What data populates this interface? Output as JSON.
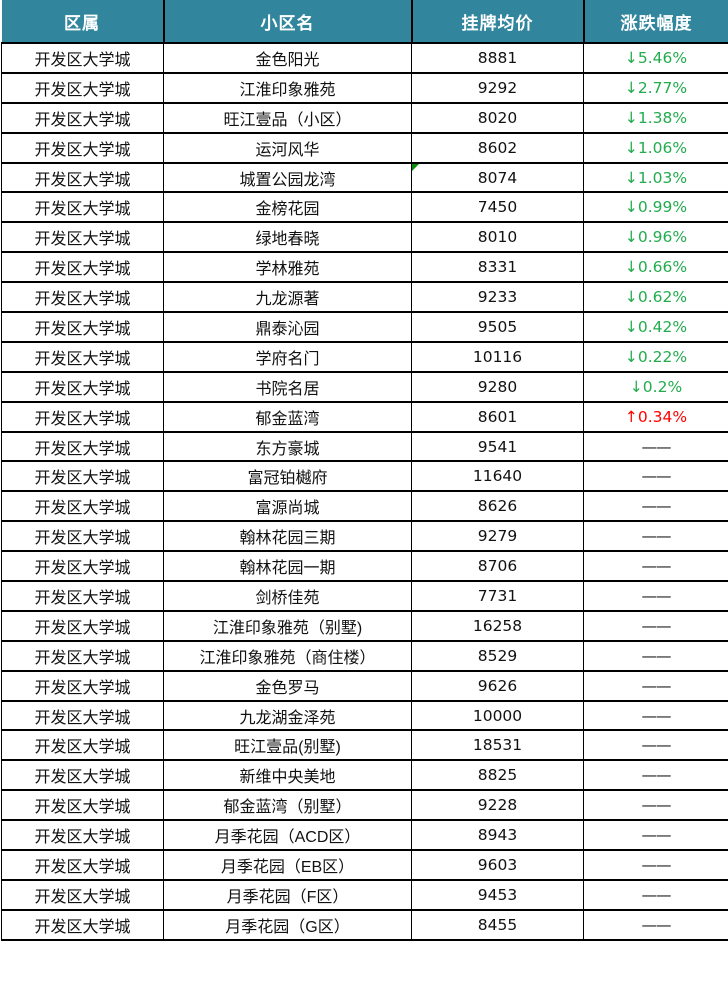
{
  "colors": {
    "header_bg": "#31859C",
    "header_text": "#FFFFFF",
    "grid_border": "#000000",
    "down_green": "#22AC4E",
    "up_red": "#FF0000",
    "comment_marker_green": "#0B8F0B"
  },
  "table": {
    "headers": {
      "district": "区属",
      "name": "小区名",
      "price": "挂牌均价",
      "change": "涨跌幅度"
    },
    "rows": [
      {
        "district": "开发区大学城",
        "name": "金色阳光",
        "price": "8881",
        "change": "↓5.46%",
        "direction": "down",
        "marker": false
      },
      {
        "district": "开发区大学城",
        "name": "江淮印象雅苑",
        "price": "9292",
        "change": "↓2.77%",
        "direction": "down",
        "marker": false
      },
      {
        "district": "开发区大学城",
        "name": "旺江壹品（小区）",
        "price": "8020",
        "change": "↓1.38%",
        "direction": "down",
        "marker": false
      },
      {
        "district": "开发区大学城",
        "name": "运河风华",
        "price": "8602",
        "change": "↓1.06%",
        "direction": "down",
        "marker": false
      },
      {
        "district": "开发区大学城",
        "name": "城置公园龙湾",
        "price": "8074",
        "change": "↓1.03%",
        "direction": "down",
        "marker": true
      },
      {
        "district": "开发区大学城",
        "name": "金榜花园",
        "price": "7450",
        "change": "↓0.99%",
        "direction": "down",
        "marker": false
      },
      {
        "district": "开发区大学城",
        "name": "绿地春晓",
        "price": "8010",
        "change": "↓0.96%",
        "direction": "down",
        "marker": false
      },
      {
        "district": "开发区大学城",
        "name": "学林雅苑",
        "price": "8331",
        "change": "↓0.66%",
        "direction": "down",
        "marker": false
      },
      {
        "district": "开发区大学城",
        "name": "九龙源著",
        "price": "9233",
        "change": "↓0.62%",
        "direction": "down",
        "marker": false
      },
      {
        "district": "开发区大学城",
        "name": "鼎泰沁园",
        "price": "9505",
        "change": "↓0.42%",
        "direction": "down",
        "marker": false
      },
      {
        "district": "开发区大学城",
        "name": "学府名门",
        "price": "10116",
        "change": "↓0.22%",
        "direction": "down",
        "marker": false
      },
      {
        "district": "开发区大学城",
        "name": "书院名居",
        "price": "9280",
        "change": "↓0.2%",
        "direction": "down",
        "marker": false
      },
      {
        "district": "开发区大学城",
        "name": "郁金蓝湾",
        "price": "8601",
        "change": "↑0.34%",
        "direction": "up",
        "marker": false
      },
      {
        "district": "开发区大学城",
        "name": "东方豪城",
        "price": "9541",
        "change": "——",
        "direction": "none",
        "marker": false
      },
      {
        "district": "开发区大学城",
        "name": "富冠铂樾府",
        "price": "11640",
        "change": "——",
        "direction": "none",
        "marker": false
      },
      {
        "district": "开发区大学城",
        "name": "富源尚城",
        "price": "8626",
        "change": "——",
        "direction": "none",
        "marker": false
      },
      {
        "district": "开发区大学城",
        "name": "翰林花园三期",
        "price": "9279",
        "change": "——",
        "direction": "none",
        "marker": false
      },
      {
        "district": "开发区大学城",
        "name": "翰林花园一期",
        "price": "8706",
        "change": "——",
        "direction": "none",
        "marker": false
      },
      {
        "district": "开发区大学城",
        "name": "剑桥佳苑",
        "price": "7731",
        "change": "——",
        "direction": "none",
        "marker": false
      },
      {
        "district": "开发区大学城",
        "name": "江淮印象雅苑（别墅)",
        "price": "16258",
        "change": "——",
        "direction": "none",
        "marker": false
      },
      {
        "district": "开发区大学城",
        "name": "江淮印象雅苑（商住楼）",
        "price": "8529",
        "change": "——",
        "direction": "none",
        "marker": false
      },
      {
        "district": "开发区大学城",
        "name": "金色罗马",
        "price": "9626",
        "change": "——",
        "direction": "none",
        "marker": false
      },
      {
        "district": "开发区大学城",
        "name": "九龙湖金泽苑",
        "price": "10000",
        "change": "——",
        "direction": "none",
        "marker": false
      },
      {
        "district": "开发区大学城",
        "name": "旺江壹品(别墅)",
        "price": "18531",
        "change": "——",
        "direction": "none",
        "marker": false
      },
      {
        "district": "开发区大学城",
        "name": "新维中央美地",
        "price": "8825",
        "change": "——",
        "direction": "none",
        "marker": false
      },
      {
        "district": "开发区大学城",
        "name": "郁金蓝湾（别墅）",
        "price": "9228",
        "change": "——",
        "direction": "none",
        "marker": false
      },
      {
        "district": "开发区大学城",
        "name": "月季花园（ACD区）",
        "price": "8943",
        "change": "——",
        "direction": "none",
        "marker": false
      },
      {
        "district": "开发区大学城",
        "name": "月季花园（EB区）",
        "price": "9603",
        "change": "——",
        "direction": "none",
        "marker": false
      },
      {
        "district": "开发区大学城",
        "name": "月季花园（F区）",
        "price": "9453",
        "change": "——",
        "direction": "none",
        "marker": false
      },
      {
        "district": "开发区大学城",
        "name": "月季花园（G区）",
        "price": "8455",
        "change": "——",
        "direction": "none",
        "marker": false
      }
    ]
  }
}
